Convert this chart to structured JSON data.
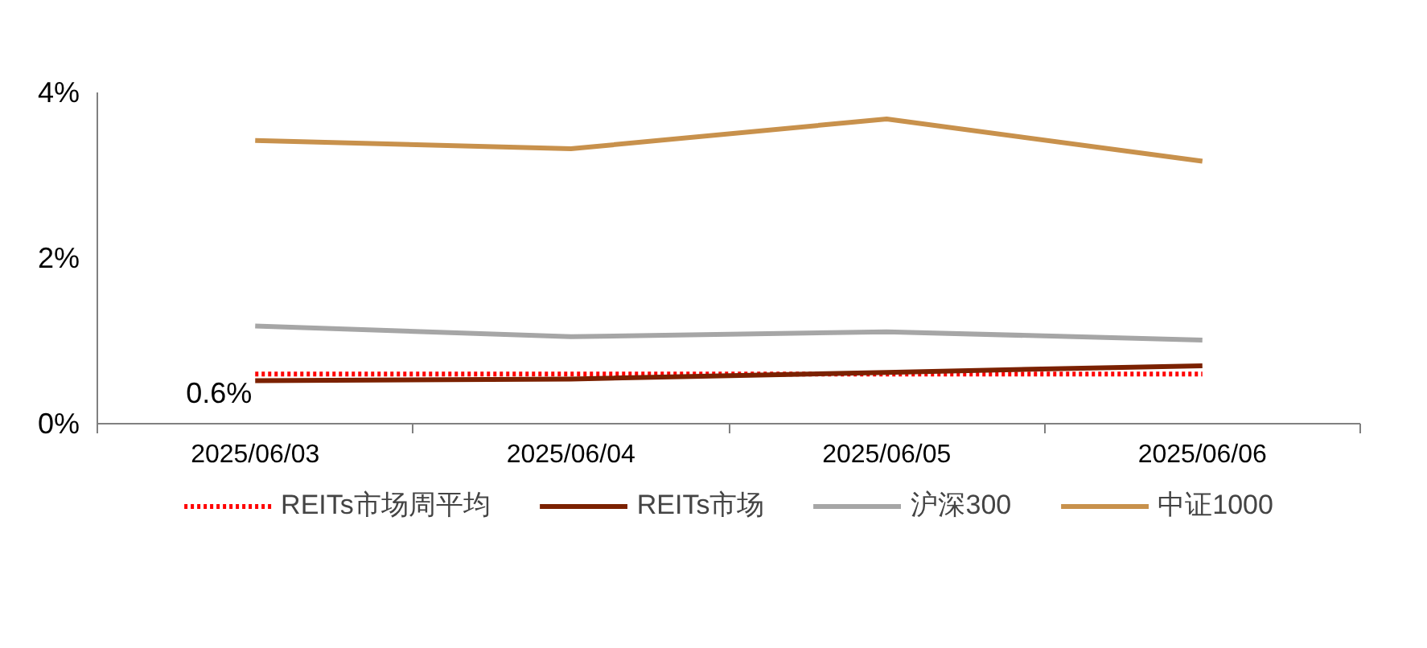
{
  "chart_data": {
    "type": "line",
    "categories": [
      "2025/06/03",
      "2025/06/04",
      "2025/06/05",
      "2025/06/06"
    ],
    "series": [
      {
        "name": "REITs市场周平均",
        "color": "#ff0000",
        "line_style": "dotted",
        "values": [
          0.6,
          0.6,
          0.6,
          0.6
        ]
      },
      {
        "name": "REITs市场",
        "color": "#7b2100",
        "values": [
          0.52,
          0.54,
          0.62,
          0.7
        ]
      },
      {
        "name": "沪深300",
        "color": "#a6a6a6",
        "values": [
          1.18,
          1.05,
          1.11,
          1.01
        ]
      },
      {
        "name": "中证1000",
        "color": "#c8914c",
        "values": [
          3.42,
          3.32,
          3.68,
          3.17
        ]
      }
    ],
    "ylim": [
      0,
      4
    ],
    "yticks": [
      {
        "value": 0,
        "label": "0%"
      },
      {
        "value": 2,
        "label": "2%"
      },
      {
        "value": 4,
        "label": "4%"
      }
    ],
    "grid": false,
    "legend": "bottom",
    "line_style": "solid",
    "annotations": [
      {
        "text": "0.6%",
        "x": "2025/06/03",
        "y": 0.6
      }
    ]
  }
}
